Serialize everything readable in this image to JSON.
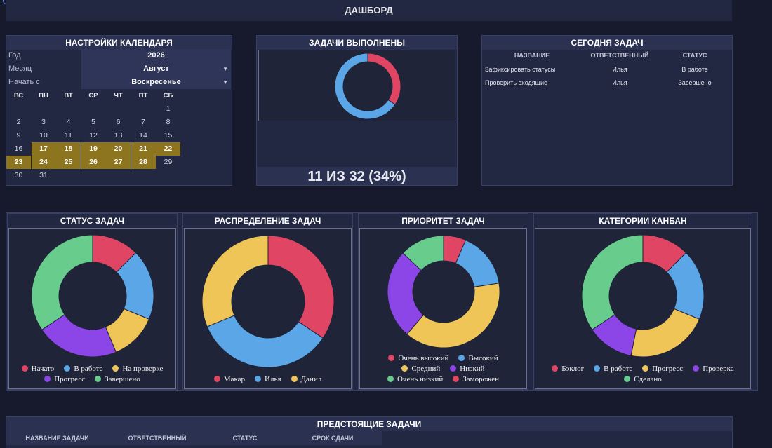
{
  "header": {
    "title": "ДАШБОРД"
  },
  "calendar": {
    "title": "НАСТРОЙКИ КАЛЕНДАРЯ",
    "year_label": "Год",
    "year_value": "2026",
    "month_label": "Месяц",
    "month_value": "Август",
    "start_label": "Начать с",
    "start_value": "Воскресенье",
    "weekdays": [
      "ВС",
      "ПН",
      "ВТ",
      "СР",
      "ЧТ",
      "ПТ",
      "СБ"
    ],
    "weeks": [
      [
        "",
        "",
        "",
        "",
        "",
        "",
        "1"
      ],
      [
        "2",
        "3",
        "4",
        "5",
        "6",
        "7",
        "8"
      ],
      [
        "9",
        "10",
        "11",
        "12",
        "13",
        "14",
        "15"
      ],
      [
        "16",
        "17",
        "18",
        "19",
        "20",
        "21",
        "22"
      ],
      [
        "23",
        "24",
        "25",
        "26",
        "27",
        "28",
        "29"
      ],
      [
        "30",
        "31",
        "",
        "",
        "",
        "",
        ""
      ]
    ],
    "highlighted_days": [
      "17",
      "18",
      "19",
      "20",
      "21",
      "22",
      "23",
      "24",
      "25",
      "26",
      "27",
      "28"
    ]
  },
  "done": {
    "title": "ЗАДАЧИ ВЫПОЛНЕНЫ",
    "summary": "11 ИЗ 32  (34%)",
    "completed": 11,
    "total": 32,
    "colors": [
      "#e04664",
      "#5aa6e6"
    ]
  },
  "today": {
    "title": "СЕГОДНЯ ЗАДАЧ",
    "columns": [
      "НАЗВАНИЕ",
      "ОТВЕТСТВЕННЫЙ",
      "СТАТУС"
    ],
    "rows": [
      [
        "Зафиксировать статусы",
        "Илья",
        "В работе"
      ],
      [
        "Проверить входящие",
        "Илья",
        "Завершено"
      ]
    ]
  },
  "chart_data": [
    {
      "type": "pie",
      "title": "СТАТУС ЗАДАЧ",
      "categories": [
        "Начато",
        "В работе",
        "На проверке",
        "Прогресс",
        "Завершено"
      ],
      "values": [
        4,
        6,
        4,
        7,
        11
      ],
      "colors": [
        "#e04664",
        "#5aa6e6",
        "#f0c558",
        "#8c45e6",
        "#68cc8c"
      ],
      "legend_rows": [
        3,
        2
      ]
    },
    {
      "type": "pie",
      "title": "РАСПРЕДЕЛЕНИЕ ЗАДАЧ",
      "categories": [
        "Макар",
        "Илья",
        "Данил"
      ],
      "values": [
        11,
        11,
        10
      ],
      "colors": [
        "#e04664",
        "#5aa6e6",
        "#f0c558"
      ],
      "legend_rows": [
        3
      ]
    },
    {
      "type": "pie",
      "title": "ПРИОРИТЕТ ЗАДАЧ",
      "categories": [
        "Заморожен",
        "Высокий",
        "Средний",
        "Низкий",
        "Очень низкий",
        "Очень высокий"
      ],
      "values": [
        2,
        5,
        12,
        8,
        4,
        0
      ],
      "colors": [
        "#e04664",
        "#5aa6e6",
        "#f0c558",
        "#8c45e6",
        "#68cc8c",
        "#e04664"
      ],
      "legend_rows": [
        2,
        2,
        2
      ],
      "legend_order": [
        5,
        1,
        2,
        3,
        4,
        0
      ]
    },
    {
      "type": "pie",
      "title": "КАТЕГОРИИ КАНБАН",
      "categories": [
        "Бэклог",
        "В работе",
        "Прогресс",
        "Проверка",
        "Сделано"
      ],
      "values": [
        4,
        6,
        7,
        4,
        11
      ],
      "colors": [
        "#e04664",
        "#5aa6e6",
        "#f0c558",
        "#8c45e6",
        "#68cc8c"
      ],
      "legend_rows": [
        4,
        1
      ]
    }
  ],
  "upcoming": {
    "title": "ПРЕДСТОЯЩИЕ ЗАДАЧИ",
    "columns": [
      "НАЗВАНИЕ ЗАДАЧИ",
      "ОТВЕТСТВЕННЫЙ",
      "СТАТУС",
      "СРОК СДАЧИ"
    ]
  }
}
